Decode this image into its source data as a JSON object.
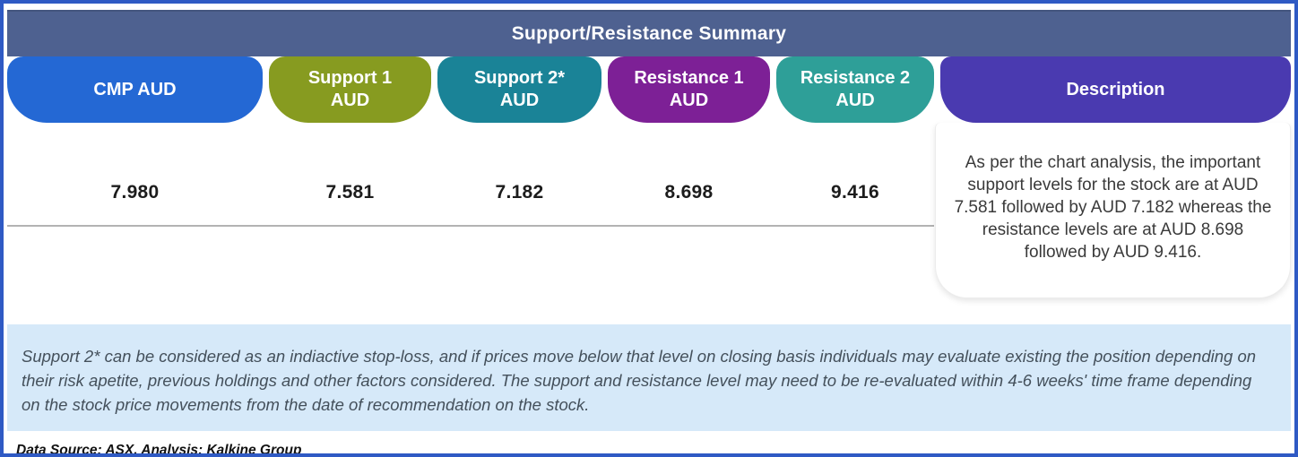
{
  "title": "Support/Resistance Summary",
  "columns": [
    {
      "label": "CMP AUD",
      "sublabel": "",
      "value": "7.980",
      "color": "#2468d4"
    },
    {
      "label": "Support 1",
      "sublabel": "AUD",
      "value": "7.581",
      "color": "#879b20"
    },
    {
      "label": "Support 2*",
      "sublabel": "AUD",
      "value": "7.182",
      "color": "#1a8397"
    },
    {
      "label": "Resistance 1",
      "sublabel": "AUD",
      "value": "8.698",
      "color": "#7d2096"
    },
    {
      "label": "Resistance 2",
      "sublabel": "AUD",
      "value": "9.416",
      "color": "#2e9f98"
    }
  ],
  "description": {
    "header": "Description",
    "header_color": "#4a3ab0",
    "text": "As per the chart analysis, the important support levels for the stock are at AUD 7.581 followed by AUD 7.182 whereas the resistance levels are at AUD 8.698 followed by AUD 9.416."
  },
  "footnote": "Support 2* can be considered as an indiactive stop-loss, and if prices move below that level on closing basis individuals may evaluate existing the position depending on their risk apetite, previous holdings and other factors considered. The support and resistance level may need to be re-evaluated within 4-6 weeks' time frame depending on the stock price movements from  the date of recommendation on the stock.",
  "source": "Data Source: ASX, Analysis: Kalkine Group",
  "colors": {
    "outer_border": "#2f5ac4",
    "title_bar": "#4e6190",
    "footnote_bg": "#d6e9f9",
    "divider": "#b3b3b3"
  }
}
